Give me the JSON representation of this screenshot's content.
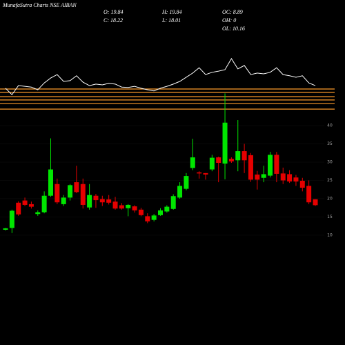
{
  "chart_data": {
    "type": "candlestick",
    "title": "MunafaSutra Charts NSE AIBAN",
    "stats": [
      "O: 19.84",
      "C: 18.22",
      "H: 19.84",
      "L: 18.01",
      "OC: 8.89",
      "OH: 0",
      "OL: 10.16"
    ],
    "up_color": "#00e600",
    "down_color": "#e60000",
    "ylim": [
      6.4,
      52
    ],
    "yticks": [
      10,
      15,
      20,
      25,
      30,
      35,
      40
    ],
    "open": [
      11.5,
      12,
      18.9,
      19.5,
      18.5,
      15.8,
      16.3,
      20.8,
      24,
      18.5,
      20.3,
      24.5,
      24,
      17.6,
      20.8,
      19.9,
      19.8,
      19.2,
      18.2,
      17.4,
      17.9,
      17,
      15.2,
      14.2,
      15.5,
      16.5,
      17.2,
      20.3,
      22.7,
      28.4,
      27.2,
      27,
      28,
      31.3,
      29.6,
      30.9,
      30.5,
      33,
      31.9,
      26.6,
      25.7,
      26.3,
      32,
      26.9,
      26.7,
      25.8,
      24.9,
      23.5,
      19.84
    ],
    "high": [
      12,
      17,
      19.3,
      20.3,
      19.2,
      16.8,
      22,
      36.5,
      25.5,
      21,
      24,
      29,
      25.5,
      24,
      21.3,
      20.8,
      21,
      20.5,
      18.8,
      18.5,
      18.2,
      17.5,
      16,
      15.8,
      17.4,
      18.2,
      21.2,
      24.5,
      27,
      36.4,
      27.5,
      27,
      32,
      31.5,
      48.8,
      31.3,
      41.5,
      35,
      32.5,
      27.6,
      29,
      32.8,
      32.8,
      28.5,
      27.8,
      26.5,
      25.7,
      25,
      19.84
    ],
    "low": [
      11.3,
      10.6,
      15.3,
      18,
      17.3,
      15.3,
      16,
      20.5,
      18.5,
      18,
      19.5,
      21.5,
      17.3,
      17,
      17.5,
      18,
      18.4,
      17,
      17,
      15.2,
      16.2,
      15.2,
      13.3,
      13.8,
      15.3,
      16.2,
      17,
      20,
      22.3,
      27.8,
      25.5,
      25.2,
      27.5,
      24.5,
      25.3,
      29.8,
      27.5,
      27,
      24.6,
      22.5,
      24.5,
      25.8,
      24.5,
      24,
      24.3,
      23.5,
      22,
      18.5,
      18.01
    ],
    "close": [
      11.9,
      16.7,
      15.7,
      18.3,
      17.8,
      16.3,
      20.8,
      28,
      19,
      20.3,
      23.7,
      21.8,
      18.3,
      21,
      19.6,
      19,
      18.9,
      17.3,
      17.3,
      18.3,
      16.8,
      15.5,
      13.8,
      15.4,
      16.8,
      17.8,
      20.7,
      23.5,
      26.2,
      31.3,
      26.9,
      26.6,
      31.2,
      29.8,
      40.8,
      30.2,
      33,
      30.5,
      25.2,
      25.2,
      26.7,
      32,
      26.8,
      25,
      24.7,
      24.7,
      23,
      19,
      18.22
    ],
    "levels": [
      50,
      49.1,
      47.9,
      47,
      46,
      44.5
    ],
    "level_color": "#ff9c2a",
    "indicator": {
      "ylim": [
        0,
        100
      ],
      "color": "#ffffff",
      "values": [
        22,
        5,
        29,
        27,
        25,
        18,
        36,
        49,
        58,
        40,
        42,
        55,
        38,
        29,
        33,
        31,
        35,
        33,
        25,
        24,
        27,
        22,
        18,
        15,
        22,
        27,
        33,
        40,
        51,
        62,
        76,
        58,
        64,
        67,
        71,
        100,
        73,
        82,
        58,
        62,
        60,
        64,
        76,
        58,
        55,
        51,
        55,
        36,
        29
      ]
    }
  }
}
